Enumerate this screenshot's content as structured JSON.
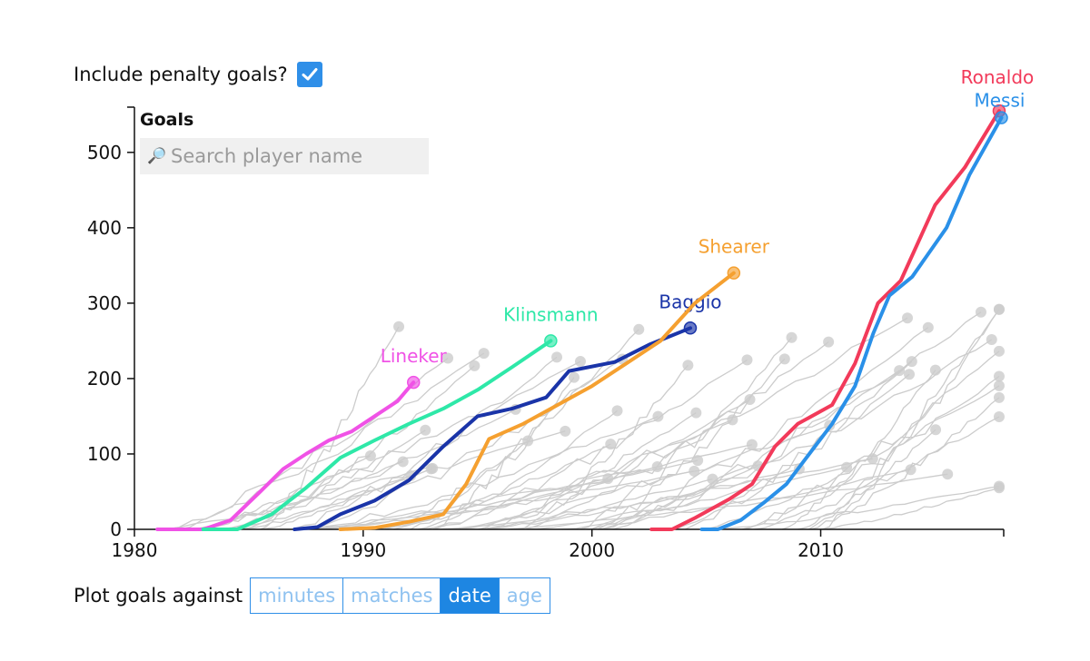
{
  "penalty": {
    "label": "Include penalty goals?",
    "checked": true
  },
  "search": {
    "placeholder": "Search player name",
    "value": ""
  },
  "plot_against": {
    "label": "Plot goals against",
    "options": [
      "minutes",
      "matches",
      "date",
      "age"
    ],
    "selected": "date"
  },
  "colors": {
    "accent": "#2f8fe8",
    "background_lines": "#cccccc"
  },
  "chart_data": {
    "type": "line",
    "ylabel": "Goals",
    "xlabel": "",
    "xlim": [
      1980,
      2018
    ],
    "ylim": [
      0,
      560
    ],
    "xticks": [
      1980,
      1990,
      2000,
      2010
    ],
    "yticks": [
      0,
      100,
      200,
      300,
      400,
      500
    ],
    "series": [
      {
        "name": "Lineker",
        "color": "#f052e6",
        "x": [
          1981,
          1983,
          1984.2,
          1985.5,
          1986.5,
          1987.5,
          1988.5,
          1989.5,
          1990.5,
          1991.5,
          1992.2
        ],
        "y": [
          0,
          0,
          12,
          50,
          80,
          100,
          118,
          130,
          150,
          170,
          195
        ]
      },
      {
        "name": "Klinsmann",
        "color": "#2ee8a8",
        "x": [
          1983,
          1984.5,
          1986,
          1987.5,
          1989,
          1990.5,
          1992,
          1993.5,
          1995,
          1996.5,
          1998.2
        ],
        "y": [
          0,
          0,
          20,
          55,
          95,
          118,
          140,
          160,
          185,
          215,
          250
        ]
      },
      {
        "name": "Baggio",
        "color": "#1a34a8",
        "x": [
          1987,
          1988,
          1989,
          1990.5,
          1992,
          1993.5,
          1995,
          1996.5,
          1998,
          1999,
          2001,
          2002.5,
          2004.3
        ],
        "y": [
          0,
          3,
          20,
          38,
          65,
          110,
          150,
          160,
          175,
          210,
          222,
          245,
          267
        ]
      },
      {
        "name": "Shearer",
        "color": "#f5a030",
        "x": [
          1989,
          1990.5,
          1992,
          1993.5,
          1994.5,
          1995.5,
          1997,
          1998.5,
          2000,
          2001.5,
          2003,
          2004.5,
          2006.2
        ],
        "y": [
          0,
          2,
          10,
          20,
          60,
          120,
          140,
          165,
          190,
          220,
          250,
          300,
          340
        ]
      },
      {
        "name": "Ronaldo",
        "color": "#f23a5a",
        "x": [
          2002.6,
          2003.5,
          2004.5,
          2006,
          2007,
          2008,
          2009,
          2010.5,
          2011.5,
          2012.5,
          2013.5,
          2015,
          2016.3,
          2017.8
        ],
        "y": [
          0,
          0,
          15,
          40,
          60,
          110,
          140,
          165,
          220,
          300,
          330,
          430,
          480,
          555
        ]
      },
      {
        "name": "Messi",
        "color": "#2a90e8",
        "x": [
          2004.8,
          2005.5,
          2006.5,
          2007.5,
          2008.5,
          2009.5,
          2010.5,
          2011.5,
          2012.3,
          2013,
          2014,
          2015.5,
          2016.5,
          2017.9
        ],
        "y": [
          0,
          0,
          12,
          35,
          60,
          100,
          140,
          190,
          260,
          310,
          335,
          400,
          470,
          546
        ]
      }
    ],
    "background_series_count": 60
  }
}
